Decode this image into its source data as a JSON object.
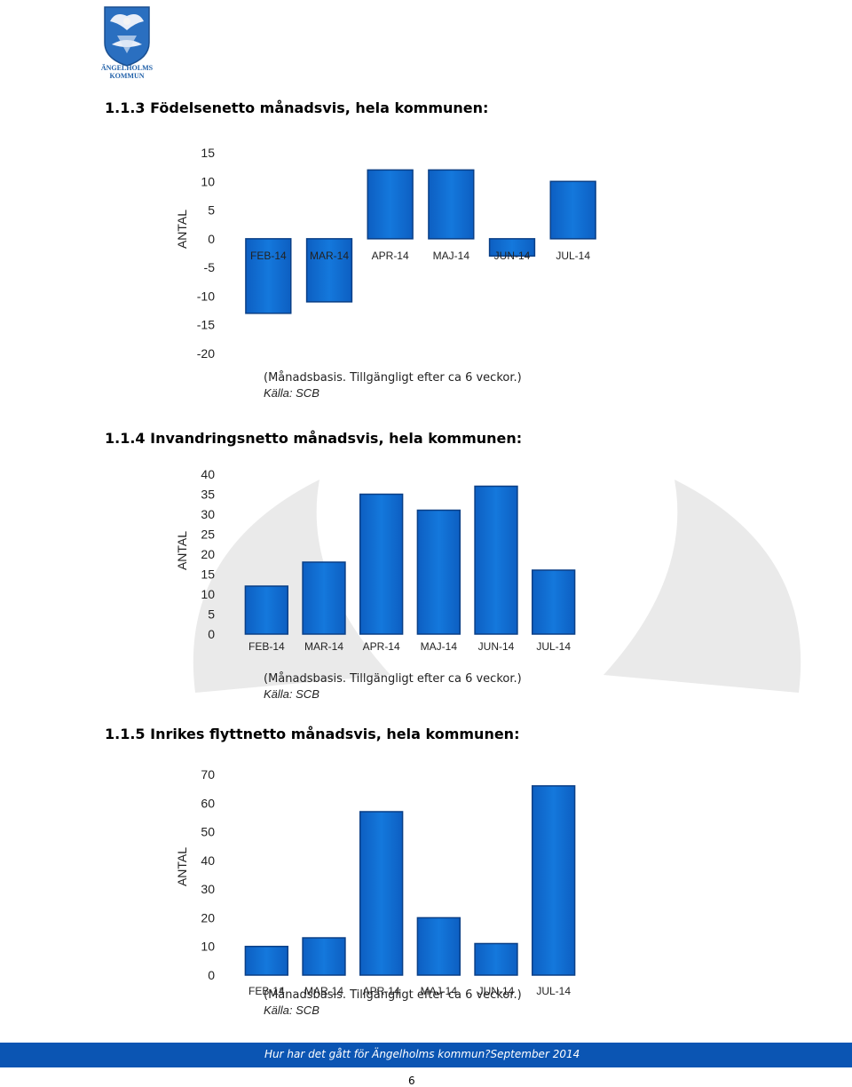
{
  "header": {
    "logo_text_1": "ÄNGELHOLMS",
    "logo_text_2": "KOMMUN"
  },
  "colors": {
    "bar_fill": "#1478dc",
    "bar_edge": "#0a3f86",
    "footer_bg": "#0b55b3"
  },
  "sections": [
    {
      "heading": "1.1.3 Födelsenetto månadsvis, hela kommunen:",
      "note": "(Månadsbasis. Tillgängligt efter ca 6 veckor.)",
      "source": "Källa: SCB"
    },
    {
      "heading": "1.1.4 Invandringsnetto månadsvis, hela kommunen:",
      "note": "(Månadsbasis. Tillgängligt efter ca 6 veckor.)",
      "source": "Källa: SCB"
    },
    {
      "heading": "1.1.5 Inrikes flyttnetto månadsvis, hela kommunen:",
      "note": "(Månadsbasis. Tillgängligt efter ca 6 veckor.)",
      "source": "Källa: SCB"
    }
  ],
  "chart_data": [
    {
      "type": "bar",
      "categories": [
        "FEB-14",
        "MAR-14",
        "APR-14",
        "MAJ-14",
        "JUN-14",
        "JUL-14"
      ],
      "values": [
        -13,
        -11,
        12,
        12,
        -3,
        10
      ],
      "ylabel": "ANTAL",
      "yticks": [
        15,
        10,
        5,
        0,
        -5,
        -10,
        -15,
        -20
      ],
      "ylim": [
        -20,
        15
      ],
      "grid": false
    },
    {
      "type": "bar",
      "categories": [
        "FEB-14",
        "MAR-14",
        "APR-14",
        "MAJ-14",
        "JUN-14",
        "JUL-14"
      ],
      "values": [
        12,
        18,
        35,
        31,
        37,
        16
      ],
      "ylabel": "ANTAL",
      "yticks": [
        40,
        35,
        30,
        25,
        20,
        15,
        10,
        5,
        0
      ],
      "ylim": [
        0,
        40
      ],
      "grid": false
    },
    {
      "type": "bar",
      "categories": [
        "FEB-14",
        "MAR-14",
        "APR-14",
        "MAJ-14",
        "JUN-14",
        "JUL-14"
      ],
      "values": [
        10,
        13,
        57,
        20,
        11,
        66
      ],
      "ylabel": "ANTAL",
      "yticks": [
        70,
        60,
        50,
        40,
        30,
        20,
        10,
        0
      ],
      "ylim": [
        0,
        70
      ],
      "grid": false
    }
  ],
  "footer": {
    "text": "Hur har det gått för Ängelholms kommun?September 2014",
    "page_number": "6"
  }
}
